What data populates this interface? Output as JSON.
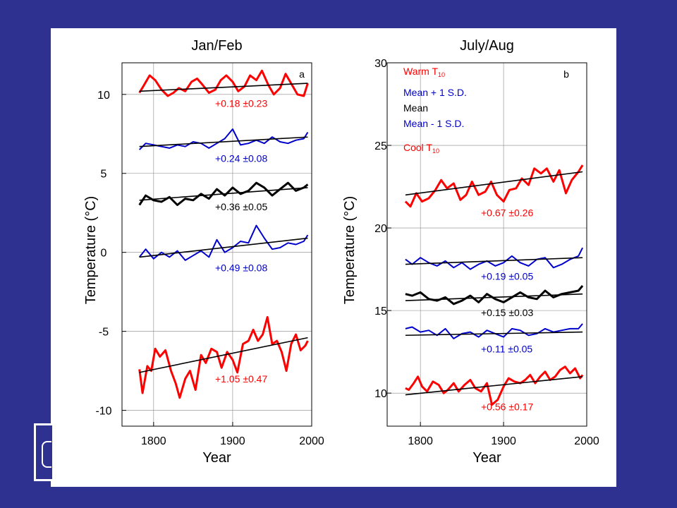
{
  "colors": {
    "background": "#2e3190",
    "panel": "#ffffff",
    "warm": "#ff0000",
    "sd": "#0000cc",
    "mean": "#000000"
  },
  "chart_data": [
    {
      "type": "line",
      "title": "Jan/Feb",
      "panel_label": "a",
      "xlabel": "Year",
      "ylabel": "Temperature (°C)",
      "xlim": [
        1760,
        2000
      ],
      "ylim": [
        -11,
        12
      ],
      "xticks": [
        1800,
        1900,
        2000
      ],
      "yticks": [
        -10,
        -5,
        0,
        5,
        10
      ],
      "grid": true,
      "series": [
        {
          "role": "warm",
          "color": "#ff0000",
          "width": 3,
          "trend_label": "+0.18 ±0.23",
          "x": [
            1782,
            1788,
            1795,
            1802,
            1810,
            1818,
            1825,
            1832,
            1840,
            1848,
            1855,
            1862,
            1870,
            1878,
            1885,
            1892,
            1900,
            1907,
            1915,
            1922,
            1930,
            1937,
            1945,
            1952,
            1960,
            1967,
            1975,
            1982,
            1990,
            1995
          ],
          "y": [
            10.1,
            10.6,
            11.2,
            10.9,
            10.3,
            9.9,
            10.1,
            10.4,
            10.2,
            10.8,
            11.0,
            10.6,
            10.1,
            10.3,
            10.9,
            11.2,
            10.8,
            10.2,
            10.5,
            11.2,
            10.9,
            11.5,
            10.6,
            10.0,
            10.4,
            11.3,
            10.6,
            10.0,
            9.9,
            10.7
          ],
          "trend": [
            [
              1782,
              10.2
            ],
            [
              1995,
              10.7
            ]
          ]
        },
        {
          "role": "plus_sd",
          "color": "#0000cc",
          "width": 2,
          "trend_label": "+0.24 ±0.08",
          "x": [
            1782,
            1790,
            1800,
            1810,
            1820,
            1830,
            1840,
            1850,
            1860,
            1870,
            1880,
            1890,
            1900,
            1910,
            1920,
            1930,
            1940,
            1950,
            1960,
            1970,
            1980,
            1990,
            1995
          ],
          "y": [
            6.5,
            6.9,
            6.8,
            6.7,
            6.6,
            6.8,
            6.7,
            7.0,
            6.9,
            6.6,
            6.9,
            7.2,
            7.8,
            6.8,
            6.9,
            7.1,
            6.9,
            7.3,
            7.0,
            6.9,
            7.1,
            7.2,
            7.6
          ],
          "trend": [
            [
              1782,
              6.7
            ],
            [
              1995,
              7.3
            ]
          ]
        },
        {
          "role": "mean",
          "color": "#000000",
          "width": 3,
          "trend_label": "+0.36 ±0.05",
          "x": [
            1782,
            1790,
            1800,
            1810,
            1820,
            1830,
            1840,
            1850,
            1860,
            1870,
            1880,
            1890,
            1900,
            1910,
            1920,
            1930,
            1940,
            1950,
            1960,
            1970,
            1980,
            1990,
            1995
          ],
          "y": [
            3.0,
            3.6,
            3.3,
            3.2,
            3.5,
            3.0,
            3.4,
            3.3,
            3.7,
            3.4,
            4.0,
            3.6,
            4.1,
            3.7,
            3.9,
            4.4,
            4.1,
            3.6,
            4.0,
            4.4,
            3.9,
            4.1,
            4.3
          ],
          "trend": [
            [
              1782,
              3.3
            ],
            [
              1995,
              4.1
            ]
          ]
        },
        {
          "role": "minus_sd",
          "color": "#0000cc",
          "width": 2,
          "trend_label": "+0.49 ±0.08",
          "x": [
            1782,
            1790,
            1800,
            1810,
            1820,
            1830,
            1840,
            1850,
            1860,
            1870,
            1880,
            1890,
            1900,
            1910,
            1920,
            1930,
            1940,
            1950,
            1960,
            1970,
            1980,
            1990,
            1995
          ],
          "y": [
            -0.3,
            0.2,
            -0.4,
            0.0,
            -0.3,
            0.1,
            -0.5,
            -0.2,
            0.1,
            -0.3,
            0.8,
            0.0,
            0.3,
            0.7,
            0.6,
            1.7,
            0.9,
            0.2,
            0.3,
            0.6,
            0.5,
            0.7,
            1.1
          ],
          "trend": [
            [
              1782,
              -0.3
            ],
            [
              1995,
              0.9
            ]
          ]
        },
        {
          "role": "cool",
          "color": "#ff0000",
          "width": 3,
          "trend_label": "+1.05 ±0.47",
          "x": [
            1782,
            1786,
            1792,
            1797,
            1802,
            1808,
            1815,
            1822,
            1828,
            1833,
            1840,
            1846,
            1853,
            1860,
            1866,
            1873,
            1880,
            1886,
            1893,
            1900,
            1906,
            1913,
            1920,
            1926,
            1932,
            1938,
            1944,
            1950,
            1956,
            1962,
            1968,
            1974,
            1980,
            1986,
            1992,
            1995
          ],
          "y": [
            -7.4,
            -8.9,
            -7.2,
            -7.5,
            -6.1,
            -6.6,
            -6.2,
            -7.5,
            -8.3,
            -9.2,
            -8.0,
            -7.5,
            -8.7,
            -6.5,
            -7.0,
            -6.1,
            -6.3,
            -7.3,
            -6.3,
            -6.8,
            -7.6,
            -5.8,
            -5.6,
            -4.9,
            -5.6,
            -5.2,
            -4.1,
            -5.8,
            -5.6,
            -6.3,
            -7.5,
            -5.8,
            -5.2,
            -6.2,
            -5.9,
            -5.6
          ],
          "trend": [
            [
              1782,
              -7.6
            ],
            [
              1995,
              -5.4
            ]
          ]
        }
      ]
    },
    {
      "type": "line",
      "title": "July/Aug",
      "panel_label": "b",
      "xlabel": "Year",
      "ylabel": "Temperature (°C)",
      "xlim": [
        1760,
        2000
      ],
      "ylim": [
        8,
        30
      ],
      "xticks": [
        1800,
        1900,
        2000
      ],
      "yticks": [
        10,
        15,
        20,
        25,
        30
      ],
      "grid": true,
      "legend": {
        "position": "top-left",
        "items": [
          {
            "name": "Warm T",
            "sub": "10",
            "color": "#ff0000"
          },
          {
            "name": "Mean + 1 S.D.",
            "sub": "",
            "color": "#0000cc"
          },
          {
            "name": "Mean",
            "sub": "",
            "color": "#000000"
          },
          {
            "name": "Mean - 1 S.D.",
            "sub": "",
            "color": "#0000cc"
          },
          {
            "name": "Cool T",
            "sub": "10",
            "color": "#ff0000"
          }
        ]
      },
      "series": [
        {
          "role": "warm",
          "color": "#ff0000",
          "width": 3,
          "trend_label": "+0.67 ±0.26",
          "x": [
            1782,
            1788,
            1795,
            1802,
            1810,
            1818,
            1825,
            1832,
            1840,
            1848,
            1855,
            1862,
            1870,
            1878,
            1885,
            1892,
            1900,
            1907,
            1915,
            1922,
            1930,
            1937,
            1945,
            1952,
            1960,
            1967,
            1975,
            1982,
            1990,
            1995
          ],
          "y": [
            21.6,
            21.3,
            22.1,
            21.6,
            21.8,
            22.3,
            22.9,
            22.4,
            22.7,
            21.7,
            22.0,
            22.8,
            22.0,
            22.2,
            22.8,
            22.0,
            21.6,
            22.3,
            22.4,
            23.0,
            22.6,
            23.6,
            23.3,
            23.6,
            22.8,
            23.5,
            22.1,
            22.9,
            23.4,
            23.8
          ],
          "trend": [
            [
              1782,
              22.0
            ],
            [
              1995,
              23.4
            ]
          ]
        },
        {
          "role": "plus_sd",
          "color": "#0000cc",
          "width": 2,
          "trend_label": "+0.19 ±0.05",
          "x": [
            1782,
            1790,
            1800,
            1810,
            1820,
            1830,
            1840,
            1850,
            1860,
            1870,
            1880,
            1890,
            1900,
            1910,
            1920,
            1930,
            1940,
            1950,
            1960,
            1970,
            1980,
            1990,
            1995
          ],
          "y": [
            18.1,
            17.8,
            18.2,
            17.9,
            17.7,
            18.0,
            17.6,
            17.9,
            17.5,
            17.8,
            18.0,
            17.7,
            17.9,
            18.3,
            17.9,
            17.7,
            18.1,
            18.2,
            17.6,
            17.8,
            18.1,
            18.3,
            18.8
          ],
          "trend": [
            [
              1782,
              17.8
            ],
            [
              1995,
              18.2
            ]
          ]
        },
        {
          "role": "mean",
          "color": "#000000",
          "width": 3,
          "trend_label": "+0.15 ±0.03",
          "x": [
            1782,
            1790,
            1800,
            1810,
            1820,
            1830,
            1840,
            1850,
            1860,
            1870,
            1880,
            1890,
            1900,
            1910,
            1920,
            1930,
            1940,
            1950,
            1960,
            1970,
            1980,
            1990,
            1995
          ],
          "y": [
            16.0,
            15.9,
            16.1,
            15.7,
            15.6,
            15.8,
            15.4,
            15.6,
            15.9,
            15.5,
            16.0,
            15.7,
            15.5,
            15.8,
            16.1,
            15.8,
            15.7,
            16.2,
            15.8,
            16.0,
            16.1,
            16.2,
            16.5
          ],
          "trend": [
            [
              1782,
              15.6
            ],
            [
              1995,
              16.0
            ]
          ]
        },
        {
          "role": "minus_sd",
          "color": "#0000cc",
          "width": 2,
          "trend_label": "+0.11 ±0.05",
          "x": [
            1782,
            1790,
            1800,
            1810,
            1820,
            1830,
            1840,
            1850,
            1860,
            1870,
            1880,
            1890,
            1900,
            1910,
            1920,
            1930,
            1940,
            1950,
            1960,
            1970,
            1980,
            1990,
            1995
          ],
          "y": [
            13.9,
            14.0,
            13.7,
            13.8,
            13.5,
            13.9,
            13.3,
            13.6,
            13.7,
            13.4,
            13.8,
            13.6,
            13.4,
            13.9,
            13.8,
            13.5,
            13.6,
            13.9,
            13.7,
            13.8,
            13.9,
            13.9,
            14.2
          ],
          "trend": [
            [
              1782,
              13.5
            ],
            [
              1995,
              13.7
            ]
          ]
        },
        {
          "role": "cool",
          "color": "#ff0000",
          "width": 3,
          "trend_label": "+0.56 ±0.17",
          "x": [
            1782,
            1786,
            1792,
            1797,
            1802,
            1808,
            1815,
            1822,
            1828,
            1833,
            1840,
            1846,
            1853,
            1860,
            1866,
            1873,
            1880,
            1886,
            1893,
            1900,
            1906,
            1913,
            1920,
            1926,
            1932,
            1938,
            1944,
            1950,
            1956,
            1962,
            1968,
            1974,
            1980,
            1986,
            1992,
            1995
          ],
          "y": [
            10.3,
            10.2,
            10.6,
            11.0,
            10.4,
            10.1,
            10.7,
            10.5,
            10.0,
            10.2,
            10.6,
            10.1,
            10.5,
            10.8,
            10.3,
            10.1,
            10.6,
            9.3,
            9.6,
            10.4,
            10.9,
            10.7,
            10.6,
            10.8,
            11.1,
            10.6,
            11.0,
            11.3,
            10.8,
            11.0,
            11.4,
            11.6,
            11.2,
            11.5,
            10.9,
            11.1
          ],
          "trend": [
            [
              1782,
              9.9
            ],
            [
              1995,
              11.0
            ]
          ]
        }
      ]
    }
  ]
}
